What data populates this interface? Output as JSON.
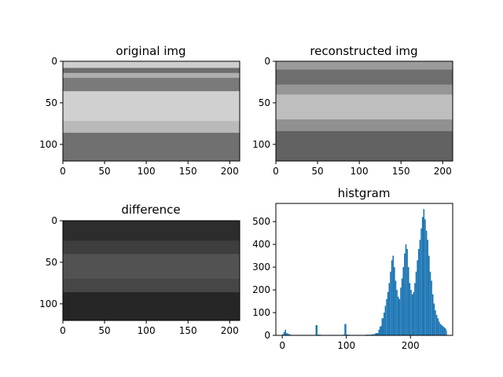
{
  "chart_data": [
    {
      "type": "heatmap",
      "title": "original img",
      "xlim": [
        0,
        212
      ],
      "ylim": [
        0,
        120
      ],
      "y_inverted": true,
      "xticks": [
        0,
        50,
        100,
        150,
        200
      ],
      "yticks": [
        0,
        50,
        100
      ],
      "colormap": "gray",
      "bands": [
        {
          "y0": 0,
          "y1": 8,
          "gray": 205
        },
        {
          "y0": 8,
          "y1": 14,
          "gray": 108
        },
        {
          "y0": 14,
          "y1": 20,
          "gray": 175
        },
        {
          "y0": 20,
          "y1": 36,
          "gray": 122
        },
        {
          "y0": 36,
          "y1": 72,
          "gray": 208
        },
        {
          "y0": 72,
          "y1": 86,
          "gray": 185
        },
        {
          "y0": 86,
          "y1": 120,
          "gray": 112
        }
      ]
    },
    {
      "type": "heatmap",
      "title": "reconstructed img",
      "xlim": [
        0,
        212
      ],
      "ylim": [
        0,
        120
      ],
      "y_inverted": true,
      "xticks": [
        0,
        50,
        100,
        150,
        200
      ],
      "yticks": [
        0,
        50,
        100
      ],
      "colormap": "gray",
      "bands": [
        {
          "y0": 0,
          "y1": 10,
          "gray": 155
        },
        {
          "y0": 10,
          "y1": 28,
          "gray": 110
        },
        {
          "y0": 28,
          "y1": 40,
          "gray": 150
        },
        {
          "y0": 40,
          "y1": 70,
          "gray": 190
        },
        {
          "y0": 70,
          "y1": 84,
          "gray": 145
        },
        {
          "y0": 84,
          "y1": 120,
          "gray": 98
        }
      ]
    },
    {
      "type": "heatmap",
      "title": "difference",
      "xlim": [
        0,
        212
      ],
      "ylim": [
        0,
        120
      ],
      "y_inverted": true,
      "xticks": [
        0,
        50,
        100,
        150,
        200
      ],
      "yticks": [
        0,
        50,
        100
      ],
      "colormap": "gray",
      "bands": [
        {
          "y0": 0,
          "y1": 24,
          "gray": 45
        },
        {
          "y0": 24,
          "y1": 40,
          "gray": 62
        },
        {
          "y0": 40,
          "y1": 70,
          "gray": 82
        },
        {
          "y0": 70,
          "y1": 86,
          "gray": 70
        },
        {
          "y0": 86,
          "y1": 120,
          "gray": 38
        }
      ]
    },
    {
      "type": "bar",
      "title": "histgram",
      "xlim": [
        -10,
        266
      ],
      "ylim": [
        0,
        580
      ],
      "xticks": [
        0,
        100,
        200
      ],
      "yticks": [
        0,
        100,
        200,
        300,
        400,
        500
      ],
      "color": "#1f77b4",
      "x": [
        0,
        2,
        4,
        6,
        8,
        10,
        12,
        14,
        16,
        18,
        20,
        25,
        30,
        35,
        40,
        45,
        50,
        52,
        55,
        60,
        65,
        70,
        75,
        80,
        85,
        90,
        95,
        97,
        100,
        105,
        110,
        115,
        120,
        125,
        130,
        135,
        140,
        145,
        150,
        152,
        155,
        158,
        160,
        162,
        164,
        166,
        168,
        170,
        172,
        174,
        176,
        178,
        180,
        182,
        184,
        186,
        188,
        190,
        192,
        194,
        196,
        198,
        200,
        202,
        204,
        206,
        208,
        210,
        212,
        214,
        216,
        218,
        220,
        222,
        224,
        226,
        228,
        230,
        232,
        234,
        236,
        238,
        240,
        242,
        244,
        246,
        248,
        250,
        252,
        254,
        256
      ],
      "values": [
        5,
        15,
        25,
        10,
        8,
        5,
        3,
        2,
        2,
        2,
        2,
        2,
        2,
        2,
        2,
        2,
        2,
        45,
        3,
        2,
        2,
        2,
        2,
        2,
        2,
        2,
        3,
        50,
        3,
        2,
        2,
        2,
        2,
        2,
        3,
        3,
        5,
        10,
        25,
        40,
        75,
        100,
        130,
        160,
        190,
        230,
        280,
        330,
        350,
        300,
        240,
        200,
        170,
        160,
        210,
        250,
        300,
        360,
        400,
        380,
        300,
        230,
        200,
        180,
        190,
        230,
        280,
        330,
        380,
        420,
        470,
        520,
        555,
        510,
        460,
        420,
        350,
        280,
        240,
        180,
        140,
        110,
        90,
        75,
        60,
        50,
        45,
        40,
        35,
        30,
        20
      ]
    }
  ]
}
